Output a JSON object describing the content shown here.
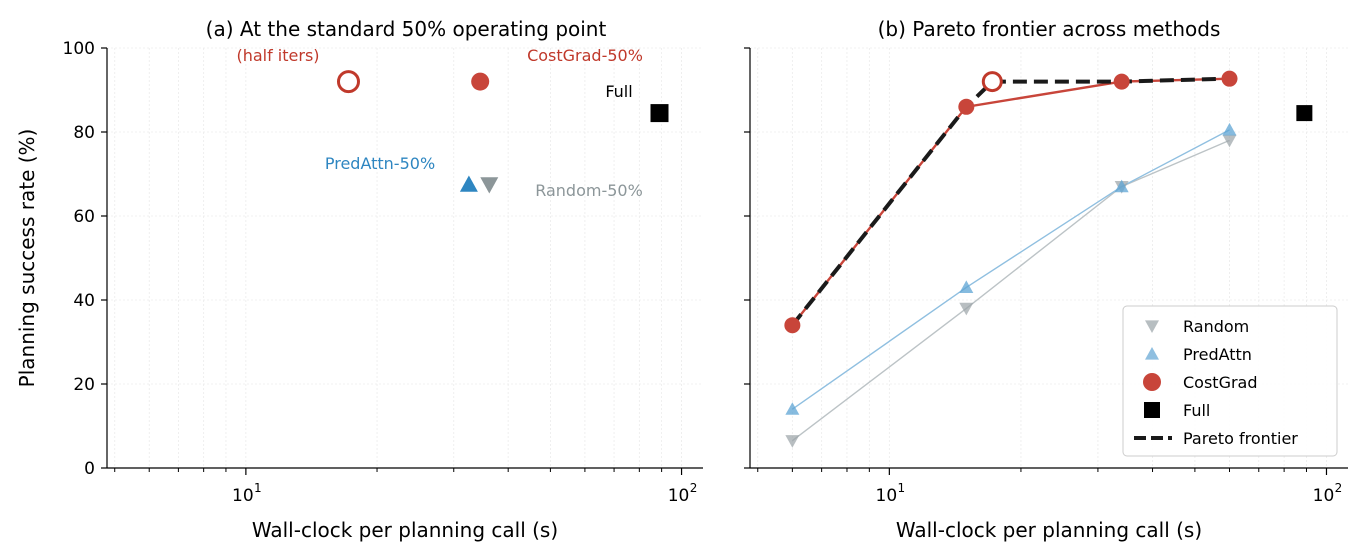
{
  "figure": {
    "ylabel": "Planning success rate (%)",
    "xlabel": "Wall-clock per planning call (s)"
  },
  "chart_data": [
    {
      "type": "scatter",
      "title": "(a) At the standard 50% operating point",
      "xlabel": "Wall-clock per planning call (s)",
      "ylabel": "Planning success rate (%)",
      "xscale": "log",
      "xlim": [
        4.8,
        112
      ],
      "ylim": [
        0,
        100
      ],
      "yticks": [
        "0",
        "20",
        "40",
        "60",
        "80",
        "100"
      ],
      "xticks": [
        {
          "base": "10",
          "exp": "1"
        },
        {
          "base": "10",
          "exp": "2"
        }
      ],
      "grid": true,
      "points": [
        {
          "name": "CostGrad-50% (half iters)",
          "x": 17.2,
          "y": 92,
          "marker": "circle-open",
          "color": "#c0392b"
        },
        {
          "name": "CostGrad-50%",
          "x": 34.5,
          "y": 92,
          "marker": "circle",
          "color": "#c8453a"
        },
        {
          "name": "PredAttn-50%",
          "x": 32.5,
          "y": 67.5,
          "marker": "triangle-up",
          "color": "#2e86c1"
        },
        {
          "name": "Random-50%",
          "x": 36.2,
          "y": 67.5,
          "marker": "triangle-down",
          "color": "#8c9699"
        },
        {
          "name": "Full",
          "x": 89,
          "y": 84.5,
          "marker": "square",
          "color": "#000000"
        }
      ],
      "annotations": [
        {
          "text": "(half iters)",
          "color": "#c0392b"
        },
        {
          "text": "CostGrad-50%",
          "color": "#c0392b"
        },
        {
          "text": "Full",
          "color": "#000000"
        },
        {
          "text": "PredAttn-50%",
          "color": "#2e86c1"
        },
        {
          "text": "Random-50%",
          "color": "#8c9699"
        }
      ]
    },
    {
      "type": "line",
      "title": "(b) Pareto frontier across methods",
      "xlabel": "Wall-clock per planning call (s)",
      "xscale": "log",
      "xlim": [
        4.8,
        112
      ],
      "ylim": [
        0,
        100
      ],
      "grid": true,
      "legend_position": "bottom-right",
      "legend": [
        "Random",
        "PredAttn",
        "CostGrad",
        "Full",
        "Pareto frontier"
      ],
      "series": [
        {
          "name": "Random",
          "color": "#bcc3c6",
          "marker": "triangle-down",
          "points": [
            [
              6,
              6.5
            ],
            [
              15,
              38
            ],
            [
              34,
              67
            ],
            [
              60,
              78
            ]
          ]
        },
        {
          "name": "PredAttn",
          "color": "#8fbfe0",
          "marker": "triangle-up",
          "points": [
            [
              6,
              14
            ],
            [
              15,
              43
            ],
            [
              34,
              67
            ],
            [
              60,
              80.5
            ]
          ]
        },
        {
          "name": "CostGrad",
          "color": "#c8453a",
          "marker": "circle",
          "points": [
            [
              6,
              34
            ],
            [
              15,
              86
            ],
            [
              34,
              92
            ],
            [
              60,
              92.7
            ]
          ],
          "extra_point": {
            "x": 17.2,
            "y": 92,
            "marker": "circle-open"
          }
        },
        {
          "name": "Full",
          "color": "#000000",
          "marker": "square",
          "points": [
            [
              89,
              84.5
            ]
          ]
        },
        {
          "name": "Pareto frontier",
          "color": "#1a1a1a",
          "dashed": true,
          "points": [
            [
              6,
              34
            ],
            [
              15,
              86
            ],
            [
              17.2,
              92
            ],
            [
              34,
              92
            ],
            [
              60,
              92.7
            ]
          ]
        }
      ]
    }
  ]
}
